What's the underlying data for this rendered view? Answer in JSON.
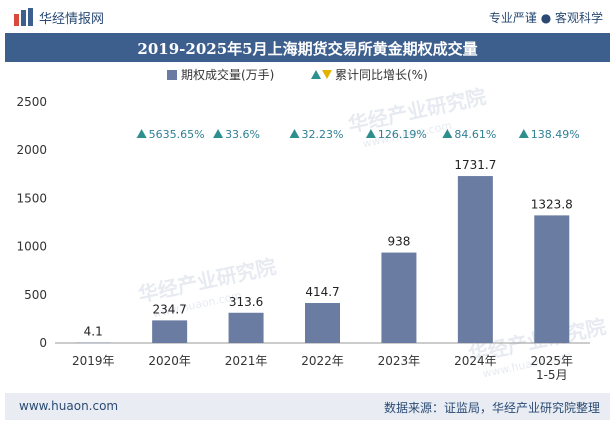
{
  "header": {
    "brand": "华经情报网",
    "tagline": "专业严谨 ● 客观科学"
  },
  "title": "2019-2025年5月上海期货交易所黄金期权成交量",
  "footer": {
    "url": "www.huaon.com",
    "source": "数据来源：证监局，华经产业研究院整理"
  },
  "watermark": {
    "text": "华经产业研究院",
    "url": "www.huaon.com"
  },
  "chart_data": {
    "type": "bar",
    "categories": [
      "2019年",
      "2020年",
      "2021年",
      "2022年",
      "2023年",
      "2024年",
      "2025年\n1-5月"
    ],
    "series": [
      {
        "name": "期权成交量(万手)",
        "values": [
          4.1,
          234.7,
          313.6,
          414.7,
          938,
          1731.7,
          1323.8
        ],
        "labels": [
          "4.1",
          "234.7",
          "313.6",
          "414.7",
          "938",
          "1731.7",
          "1323.8"
        ],
        "color": "#6a7ca2"
      },
      {
        "name": "累计同比增长(%)",
        "labels": [
          "",
          "5635.65%",
          "33.6%",
          "32.23%",
          "126.19%",
          "84.61%",
          "138.49%"
        ],
        "marker_up_color": "#2e8f8f",
        "marker_down_color": "#e0b400",
        "label_color": "#2e7f95"
      }
    ],
    "ylim": [
      0,
      2500
    ],
    "yticks": [
      0,
      500,
      1000,
      1500,
      2000,
      2500
    ],
    "grid": false,
    "legend_position": "top-center"
  }
}
